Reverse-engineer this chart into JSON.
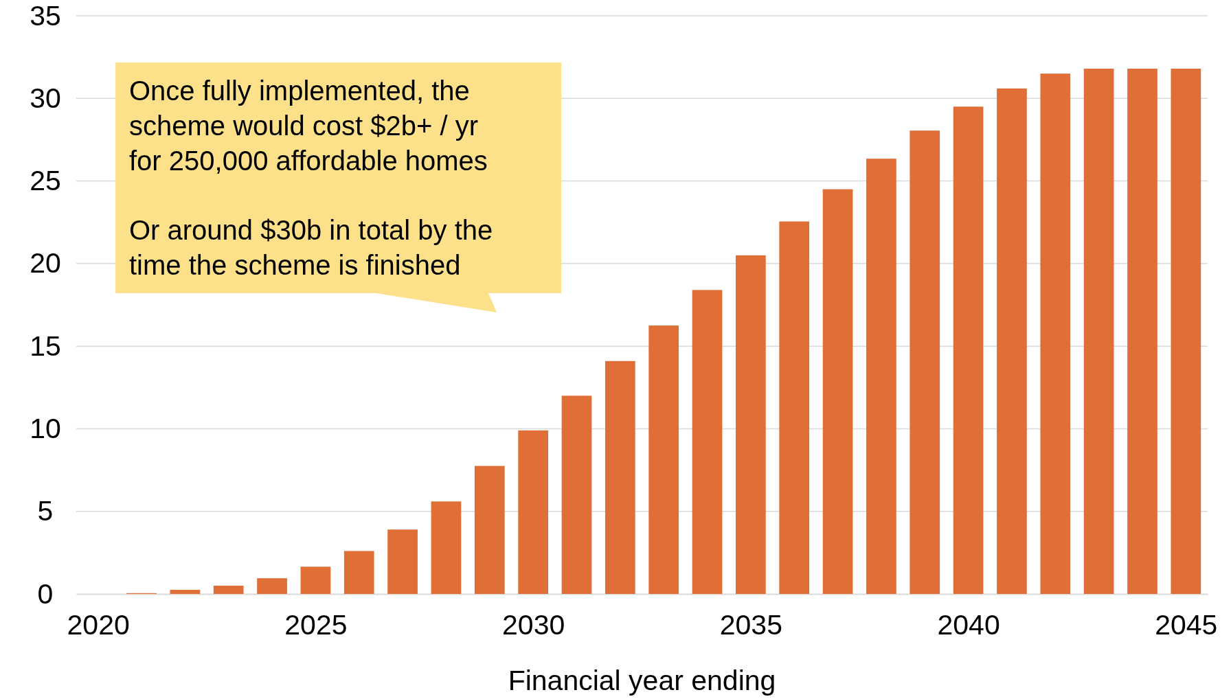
{
  "chart_data": {
    "type": "bar",
    "xlabel": "Financial year ending",
    "x": [
      2021,
      2022,
      2023,
      2024,
      2025,
      2026,
      2027,
      2028,
      2029,
      2030,
      2031,
      2032,
      2033,
      2034,
      2035,
      2036,
      2037,
      2038,
      2039,
      2040,
      2041,
      2042,
      2043,
      2044,
      2045
    ],
    "values": [
      0.05,
      0.25,
      0.5,
      0.95,
      1.65,
      2.6,
      3.9,
      5.6,
      7.75,
      9.9,
      12.0,
      14.1,
      16.25,
      18.4,
      20.5,
      22.55,
      24.5,
      26.35,
      28.05,
      29.5,
      30.6,
      31.5,
      31.8,
      31.8,
      31.8
    ],
    "color": "#e06f37",
    "xlim": [
      2019.5,
      2045.5
    ],
    "xticks": [
      2020,
      2025,
      2030,
      2035,
      2040,
      2045
    ],
    "ylim": [
      0,
      35
    ],
    "yticks": [
      0,
      5,
      10,
      15,
      20,
      25,
      30,
      35
    ],
    "grid": "y",
    "annotations": [
      "Once fully implemented, the\nscheme would cost $2b+ / yr\nfor 250,000 affordable homes",
      "Or around $30b in total by the\ntime the scheme is finished"
    ]
  }
}
